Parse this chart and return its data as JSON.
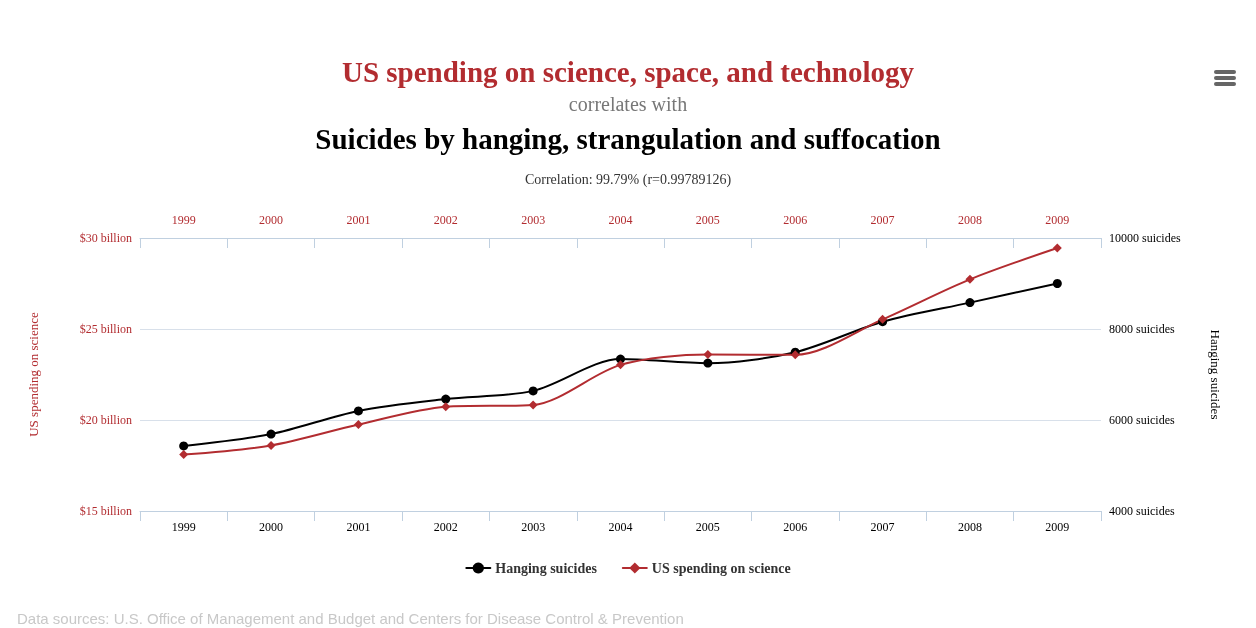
{
  "chart_data": {
    "type": "line",
    "title": "US spending on science, space, and technology",
    "subtitle": "correlates with",
    "annotations": [
      "Suicides by hanging, strangulation and suffocation",
      "Correlation: 99.79% (r=0.99789126)",
      "Data sources: U.S. Office of Management and Budget and Centers for Disease Control & Prevention"
    ],
    "categories": [
      "1999",
      "2000",
      "2001",
      "2002",
      "2003",
      "2004",
      "2005",
      "2006",
      "2007",
      "2008",
      "2009"
    ],
    "series": [
      {
        "name": "Hanging suicides",
        "color": "#000000",
        "axis": "y2",
        "marker": "circle",
        "values": [
          5430,
          5690,
          6200,
          6460,
          6640,
          7340,
          7250,
          7490,
          8160,
          8580,
          9000
        ]
      },
      {
        "name": "US spending on science",
        "color": "#b22c30",
        "marker": "diamond",
        "values": [
          18.1,
          18.6,
          19.75,
          20.73,
          20.83,
          23.03,
          23.6,
          23.58,
          25.53,
          27.73,
          29.45
        ]
      }
    ],
    "ylabel": "US spending on science",
    "y2label": "Hanging suicides",
    "ylim": [
      15,
      30
    ],
    "yticks": [
      {
        "value": 15,
        "label": "$15 billion"
      },
      {
        "value": 20,
        "label": "$20 billion"
      },
      {
        "value": 25,
        "label": "$25 billion"
      },
      {
        "value": 30,
        "label": "$30 billion"
      }
    ],
    "y2lim": [
      4000,
      10000
    ],
    "y2ticks": [
      {
        "value": 4000,
        "label": "4000 suicides"
      },
      {
        "value": 6000,
        "label": "6000 suicides"
      },
      {
        "value": 8000,
        "label": "8000 suicides"
      },
      {
        "value": 10000,
        "label": "10000 suicides"
      }
    ],
    "grid": "y",
    "legend": "bottom",
    "line_style": "solid"
  }
}
